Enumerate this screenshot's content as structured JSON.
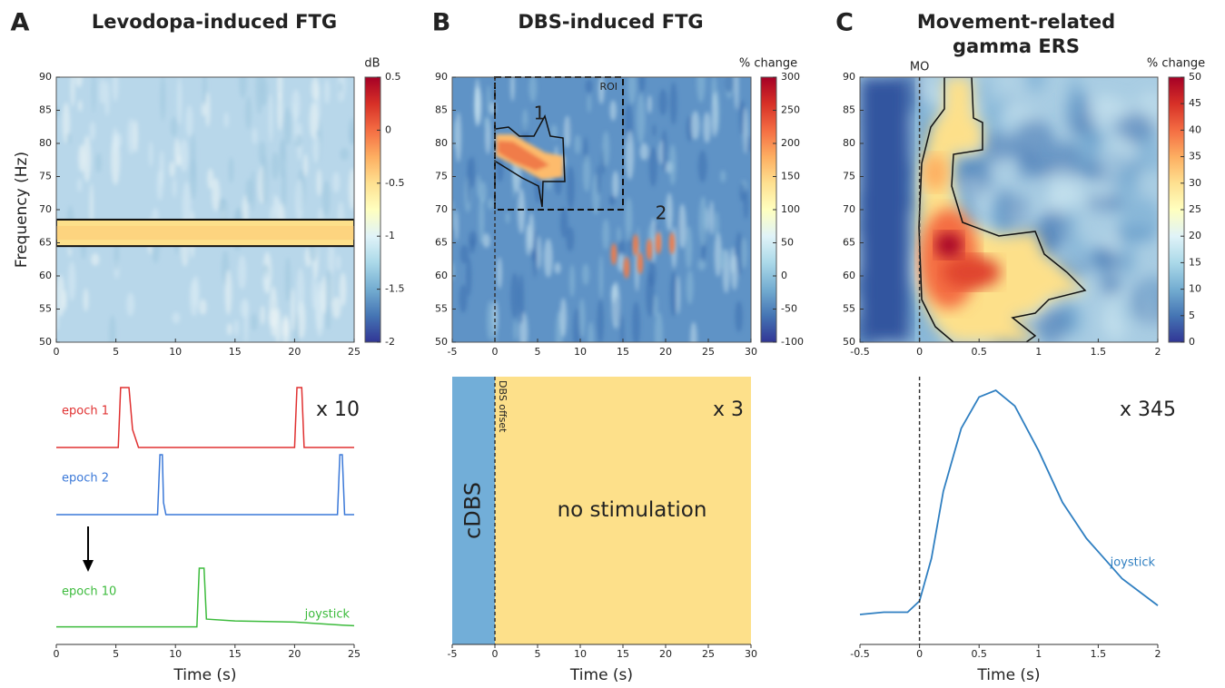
{
  "chart_data": [
    {
      "type": "heatmap",
      "panel": "A",
      "title": "Levodopa-induced FTG",
      "ylabel": "Frequency (Hz)",
      "xlim": [
        0,
        25
      ],
      "xticks": [
        0,
        5,
        10,
        15,
        20,
        25
      ],
      "ylim": [
        50,
        90
      ],
      "yticks": [
        50,
        55,
        60,
        65,
        70,
        75,
        80,
        85,
        90
      ],
      "colorbar_label": "dB",
      "clim": [
        -2,
        0.5
      ],
      "cticks": [
        -2,
        -1.5,
        -1,
        -0.5,
        0,
        0.5
      ],
      "colormap": [
        "#313695",
        "#4575b4",
        "#74add1",
        "#abd9e9",
        "#e0f3f8",
        "#ffffbf",
        "#fee090",
        "#fdae61",
        "#f46d43",
        "#d73027",
        "#a50026"
      ],
      "cluster": [
        64.5,
        68.5
      ]
    },
    {
      "type": "heatmap",
      "panel": "B",
      "title": "DBS-induced FTG",
      "xlim": [
        -5,
        30
      ],
      "xticks": [
        -5,
        0,
        5,
        10,
        15,
        20,
        25,
        30
      ],
      "ylim": [
        50,
        90
      ],
      "yticks": [
        50,
        55,
        60,
        65,
        70,
        75,
        80,
        85,
        90
      ],
      "colorbar_label": "% change",
      "clim": [
        -100,
        300
      ],
      "cticks": [
        -100,
        -50,
        0,
        50,
        100,
        150,
        200,
        250,
        300
      ],
      "colormap": [
        "#313695",
        "#4575b4",
        "#74add1",
        "#abd9e9",
        "#e0f3f8",
        "#ffffbf",
        "#fee090",
        "#fdae61",
        "#f46d43",
        "#d73027",
        "#a50026"
      ],
      "roi": {
        "label": "ROI",
        "xlim": [
          0,
          15
        ],
        "ylim": [
          70,
          90
        ]
      },
      "annotations": [
        "1",
        "2"
      ],
      "markers": [
        {
          "x": 0
        }
      ]
    },
    {
      "type": "heatmap",
      "panel": "C",
      "title": [
        "Movement-related",
        "gamma ERS"
      ],
      "xlim": [
        -0.5,
        2
      ],
      "xticks": [
        -0.5,
        0,
        0.5,
        1,
        1.5,
        2
      ],
      "ylim": [
        50,
        90
      ],
      "yticks": [
        50,
        55,
        60,
        65,
        70,
        75,
        80,
        85,
        90
      ],
      "colorbar_label": "% change",
      "clim": [
        0,
        50
      ],
      "cticks": [
        0,
        5,
        10,
        15,
        20,
        25,
        30,
        35,
        40,
        45,
        50
      ],
      "colormap": [
        "#313695",
        "#4575b4",
        "#74add1",
        "#abd9e9",
        "#e0f3f8",
        "#ffffbf",
        "#fee090",
        "#fdae61",
        "#f46d43",
        "#d73027",
        "#a50026"
      ],
      "markers": [
        {
          "x": 0,
          "label": "MO"
        }
      ]
    },
    {
      "type": "traces",
      "xlabel": "Time (s)",
      "xlim": [
        0,
        25
      ],
      "xticks": [
        0,
        5,
        10,
        15,
        20,
        25
      ],
      "multiplier": "x 10",
      "note": "joystick",
      "series": [
        {
          "name": "epoch 1",
          "color": "#e03030",
          "x": [
            0,
            5.2,
            5.4,
            6.1,
            6.4,
            6.9,
            20.0,
            20.2,
            20.6,
            20.8,
            25
          ],
          "values": [
            0,
            0,
            1,
            1,
            0.3,
            0,
            0,
            1,
            1,
            0,
            0
          ]
        },
        {
          "name": "epoch 2",
          "color": "#3a78d8",
          "x": [
            0,
            8.5,
            8.7,
            8.9,
            9.0,
            9.2,
            23.6,
            23.8,
            24.0,
            24.2,
            25
          ],
          "values": [
            0,
            0,
            1,
            1,
            0.2,
            0,
            0,
            1,
            1,
            0,
            0
          ]
        },
        {
          "name": "epoch 10",
          "color": "#3cbb3c",
          "x": [
            0,
            11.8,
            12.0,
            12.4,
            12.6,
            15,
            20,
            24,
            25
          ],
          "values": [
            0.02,
            0.02,
            1,
            1,
            0.15,
            0.12,
            0.1,
            0.05,
            0.04
          ]
        }
      ]
    },
    {
      "type": "timeline",
      "xlabel": "Time (s)",
      "xlim": [
        -5,
        30
      ],
      "xticks": [
        -5,
        0,
        5,
        10,
        15,
        20,
        25,
        30
      ],
      "multiplier": "x 3",
      "segments": [
        {
          "label": "cDBS",
          "start": -5,
          "end": 0,
          "color": "#72aed8"
        },
        {
          "label": "no stimulation",
          "start": 0,
          "end": 30,
          "color": "#fde08a"
        }
      ],
      "markers": [
        {
          "x": 0,
          "label": "DBS offset"
        }
      ]
    },
    {
      "type": "line",
      "xlabel": "Time (s)",
      "xlim": [
        -0.5,
        2
      ],
      "xticks": [
        -0.5,
        0,
        0.5,
        1,
        1.5,
        2
      ],
      "multiplier": "x 345",
      "markers": [
        {
          "x": 0
        }
      ],
      "series": [
        {
          "name": "joystick",
          "color": "#2f7fc1",
          "x": [
            -0.5,
            -0.3,
            -0.1,
            0,
            0.1,
            0.2,
            0.35,
            0.5,
            0.64,
            0.8,
            1.0,
            1.2,
            1.4,
            1.5,
            1.7,
            2.0
          ],
          "values": [
            0,
            0.01,
            0.01,
            0.06,
            0.25,
            0.55,
            0.83,
            0.97,
            1,
            0.93,
            0.73,
            0.5,
            0.34,
            0.28,
            0.16,
            0.04
          ]
        }
      ]
    }
  ]
}
